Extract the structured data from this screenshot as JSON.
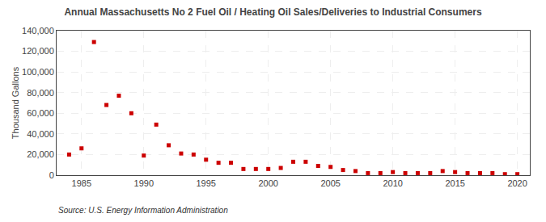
{
  "chart_data": {
    "type": "scatter",
    "title": "Annual Massachusetts No 2 Fuel Oil / Heating Oil Sales/Deliveries to Industrial Consumers",
    "ylabel": "Thousand Gallons",
    "annotations": [
      "Source: U.S. Energy Information Administration"
    ],
    "x": [
      1984,
      1985,
      1986,
      1987,
      1988,
      1989,
      1990,
      1991,
      1992,
      1993,
      1994,
      1995,
      1996,
      1997,
      1998,
      1999,
      2000,
      2001,
      2002,
      2003,
      2004,
      2005,
      2006,
      2007,
      2008,
      2009,
      2010,
      2011,
      2012,
      2013,
      2014,
      2015,
      2016,
      2017,
      2018,
      2019,
      2020
    ],
    "values": [
      20000,
      26000,
      129000,
      68000,
      77000,
      60000,
      19000,
      49000,
      29000,
      21000,
      20000,
      15000,
      12000,
      12000,
      6000,
      6000,
      6000,
      7000,
      13000,
      13000,
      9000,
      8000,
      5000,
      4000,
      2000,
      2000,
      3000,
      2000,
      2000,
      2000,
      4000,
      3000,
      2000,
      2000,
      2000,
      1000,
      1000
    ],
    "color": "#cc0000",
    "marker": "square",
    "grid": true,
    "xlim": [
      1983,
      2021
    ],
    "xticks": [
      1985,
      1990,
      1995,
      2000,
      2005,
      2010,
      2015,
      2020
    ],
    "ylim": [
      0,
      140000
    ],
    "yticks": [
      0,
      {
        "value": 20000,
        "label": "20,000"
      },
      {
        "value": 40000,
        "label": "40,000"
      },
      {
        "value": 60000,
        "label": "60,000"
      },
      {
        "value": 80000,
        "label": "80,000"
      },
      {
        "value": 100000,
        "label": "100,000"
      },
      {
        "value": 120000,
        "label": "120,000"
      },
      {
        "value": 140000,
        "label": "140,000"
      }
    ]
  }
}
